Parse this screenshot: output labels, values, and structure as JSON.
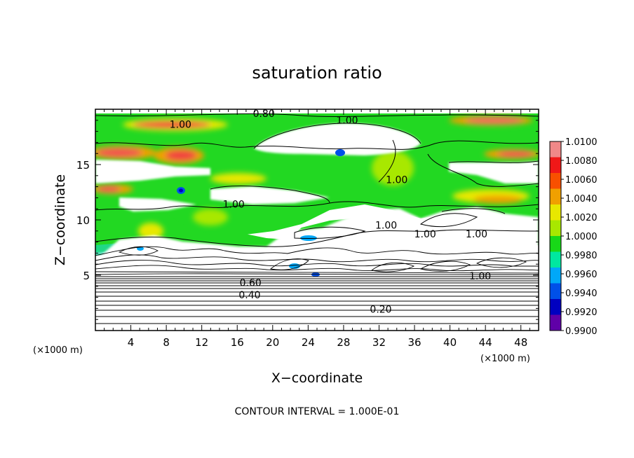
{
  "chart_data": {
    "type": "heatmap",
    "title": "saturation ratio",
    "xlabel": "X−coordinate",
    "ylabel": "Z−coordinate",
    "x_unit_left": "(×1000 m)",
    "x_unit_right": "(×1000 m)",
    "xlim": [
      0,
      50
    ],
    "ylim": [
      0,
      20
    ],
    "x_ticks": [
      4,
      8,
      12,
      16,
      20,
      24,
      28,
      32,
      36,
      40,
      44,
      48
    ],
    "x_tick_labels": [
      "4",
      "8",
      "12",
      "16",
      "20",
      "24",
      "28",
      "32",
      "36",
      "40",
      "44",
      "48"
    ],
    "y_ticks": [
      5,
      10,
      15
    ],
    "y_tick_labels": [
      "5",
      "10",
      "15"
    ],
    "colorbar": {
      "min": 0.99,
      "max": 1.01,
      "tick_labels": [
        "1.0100",
        "1.0080",
        "1.0060",
        "1.0040",
        "1.0020",
        "1.0000",
        "0.9980",
        "0.9960",
        "0.9940",
        "0.9920",
        "0.9900"
      ],
      "colors": [
        "#f08888",
        "#f01818",
        "#f85000",
        "#f0a000",
        "#e8e800",
        "#a8e800",
        "#18d818",
        "#00e8a0",
        "#00a8f8",
        "#0050e8",
        "#0000c0",
        "#6000a8"
      ]
    },
    "contour_labels": [
      {
        "text": "0.80",
        "x": 19.0,
        "y": 19.5
      },
      {
        "text": "1.00",
        "x": 28.4,
        "y": 18.9
      },
      {
        "text": "1.00",
        "x": 9.6,
        "y": 18.5
      },
      {
        "text": "1.00",
        "x": 34.0,
        "y": 13.5
      },
      {
        "text": "1.00",
        "x": 15.6,
        "y": 11.3
      },
      {
        "text": "1.00",
        "x": 32.8,
        "y": 9.4
      },
      {
        "text": "1.00",
        "x": 37.2,
        "y": 8.6
      },
      {
        "text": "1.00",
        "x": 43.0,
        "y": 8.6
      },
      {
        "text": "1.00",
        "x": 43.4,
        "y": 4.8
      },
      {
        "text": "0.60",
        "x": 17.5,
        "y": 4.2
      },
      {
        "text": "0.40",
        "x": 17.4,
        "y": 3.1
      },
      {
        "text": "0.20",
        "x": 32.2,
        "y": 1.8
      }
    ],
    "note": "CONTOUR INTERVAL = 1.000E-01"
  }
}
